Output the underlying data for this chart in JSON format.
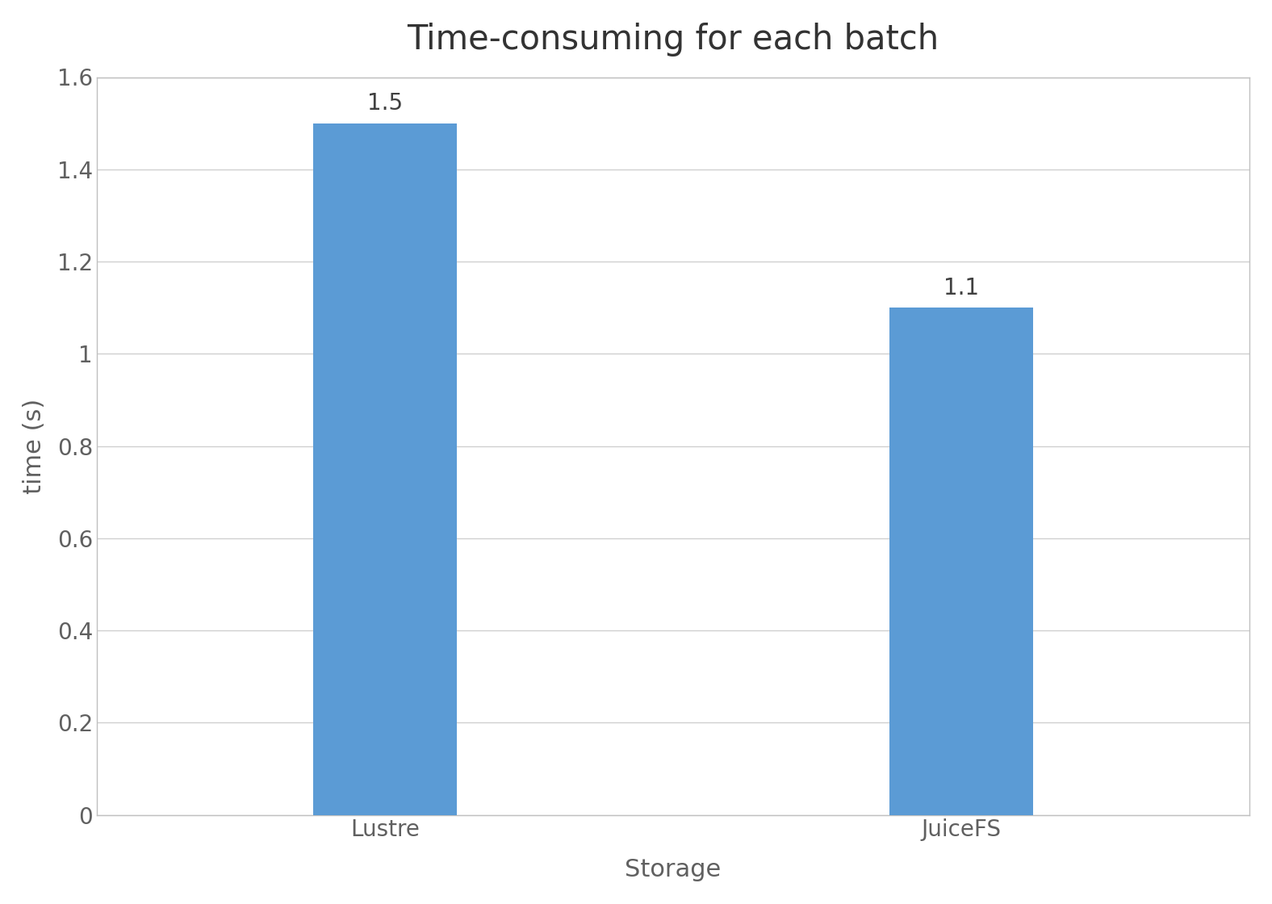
{
  "categories": [
    "Lustre",
    "JuiceFS"
  ],
  "values": [
    1.5,
    1.1
  ],
  "bar_color": "#5b9bd5",
  "title": "Time-consuming for each batch",
  "xlabel": "Storage",
  "ylabel": "time (s)",
  "ylim": [
    0,
    1.6
  ],
  "yticks": [
    0,
    0.2,
    0.4,
    0.6,
    0.8,
    1.0,
    1.2,
    1.4,
    1.6
  ],
  "ytick_labels": [
    "0",
    "0.2",
    "0.4",
    "0.6",
    "0.8",
    "1",
    "1.2",
    "1.4",
    "1.6"
  ],
  "title_fontsize": 30,
  "label_fontsize": 22,
  "tick_fontsize": 20,
  "bar_label_fontsize": 20,
  "background_color": "#ffffff",
  "plot_bg_color": "#ffffff",
  "bar_width": 0.25,
  "grid_color": "#d0d0d0",
  "bar_positions": [
    1,
    2
  ],
  "xlim": [
    0.5,
    2.5
  ],
  "border_color": "#c0c0c0"
}
